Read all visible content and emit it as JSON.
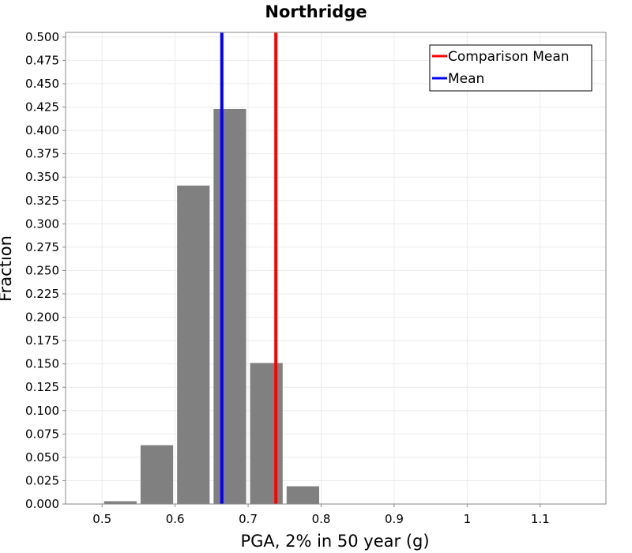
{
  "chart_data": {
    "type": "bar",
    "title": "Northridge",
    "xlabel": "PGA, 2% in 50 year (g)",
    "ylabel": "Fraction",
    "xlim": [
      0.45,
      1.19
    ],
    "ylim": [
      0.0,
      0.505
    ],
    "x_ticks": [
      0.5,
      0.6,
      0.7,
      0.8,
      0.9,
      1.0,
      1.1
    ],
    "x_tick_labels": [
      "0.5",
      "0.6",
      "0.7",
      "0.8",
      "0.9",
      "1",
      "1.1"
    ],
    "y_ticks": [
      0.0,
      0.025,
      0.05,
      0.075,
      0.1,
      0.125,
      0.15,
      0.175,
      0.2,
      0.225,
      0.25,
      0.275,
      0.3,
      0.325,
      0.35,
      0.375,
      0.4,
      0.425,
      0.45,
      0.475,
      0.5
    ],
    "y_tick_labels": [
      "0.000",
      "0.025",
      "0.050",
      "0.075",
      "0.100",
      "0.125",
      "0.150",
      "0.175",
      "0.200",
      "0.225",
      "0.250",
      "0.275",
      "0.300",
      "0.325",
      "0.350",
      "0.375",
      "0.400",
      "0.425",
      "0.450",
      "0.475",
      "0.500"
    ],
    "bin_width": 0.05,
    "bins": [
      {
        "x": 0.525,
        "value": 0.003
      },
      {
        "x": 0.575,
        "value": 0.063
      },
      {
        "x": 0.625,
        "value": 0.341
      },
      {
        "x": 0.675,
        "value": 0.423
      },
      {
        "x": 0.725,
        "value": 0.151
      },
      {
        "x": 0.775,
        "value": 0.019
      }
    ],
    "bar_color": "#808080",
    "lines": [
      {
        "name": "Comparison Mean",
        "x": 0.738,
        "color": "#ff0000"
      },
      {
        "name": "Mean",
        "x": 0.664,
        "color": "#0000ff"
      }
    ],
    "legend": {
      "position": "top-right",
      "entries": [
        {
          "label": "Comparison Mean",
          "color": "#ff0000"
        },
        {
          "label": "Mean",
          "color": "#0000ff"
        }
      ]
    },
    "grid": true
  }
}
